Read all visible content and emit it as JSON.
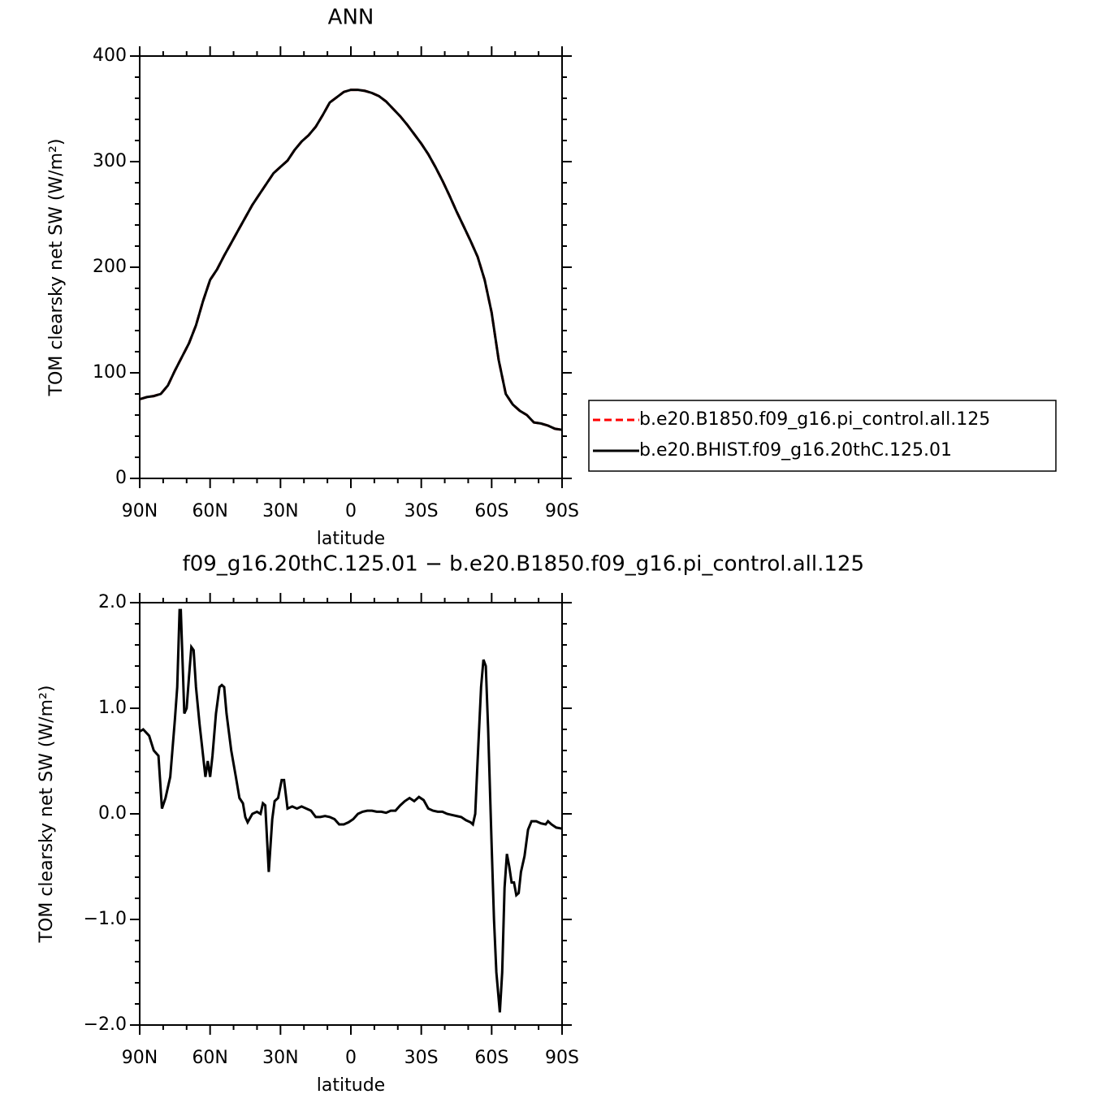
{
  "chart_data": [
    {
      "type": "line",
      "title": "ANN",
      "xlabel": "latitude",
      "ylabel": "TOM clearsky net SW (W/m²)",
      "x": [
        90,
        87,
        84,
        81,
        78,
        75,
        72,
        69,
        66,
        63,
        60,
        57,
        54,
        51,
        48,
        45,
        42,
        39,
        36,
        33,
        30,
        27,
        24,
        21,
        18,
        15,
        12,
        9,
        6,
        3,
        0,
        -3,
        -6,
        -9,
        -12,
        -15,
        -18,
        -21,
        -24,
        -27,
        -30,
        -33,
        -36,
        -39,
        -42,
        -45,
        -48,
        -51,
        -54,
        -57,
        -60,
        -63,
        -66,
        -69,
        -72,
        -75,
        -78,
        -81,
        -84,
        -87,
        -90
      ],
      "series": [
        {
          "name": "b.e20.B1850.f09_g16.pi_control.all.125",
          "color": "#ff0000",
          "style": "dashed",
          "values": [
            75,
            77,
            78,
            80,
            88,
            102,
            115,
            128,
            145,
            168,
            188,
            198,
            211,
            223,
            235,
            247,
            259,
            269,
            279,
            289,
            295,
            301,
            311,
            319,
            325,
            333,
            344,
            356,
            361,
            366,
            368,
            368,
            367,
            365,
            362,
            357,
            350,
            343,
            335,
            326,
            317,
            307,
            295,
            282,
            268,
            253,
            239,
            225,
            210,
            188,
            157,
            112,
            80,
            70,
            64,
            60,
            53,
            52,
            50,
            47,
            46
          ]
        },
        {
          "name": "b.e20.BHIST.f09_g16.20thC.125.01",
          "color": "#000000",
          "style": "solid",
          "values": [
            75,
            77,
            78,
            80,
            88,
            102,
            115,
            128,
            145,
            168,
            188,
            198,
            211,
            223,
            235,
            247,
            259,
            269,
            279,
            289,
            295,
            301,
            311,
            319,
            325,
            333,
            344,
            356,
            361,
            366,
            368,
            368,
            367,
            365,
            362,
            357,
            350,
            343,
            335,
            326,
            317,
            307,
            295,
            282,
            268,
            253,
            239,
            225,
            210,
            188,
            157,
            112,
            80,
            70,
            64,
            60,
            53,
            52,
            50,
            47,
            46
          ]
        }
      ],
      "xlim": [
        90,
        -90
      ],
      "xticks": [
        {
          "value": 90,
          "label": "90N"
        },
        {
          "value": 60,
          "label": "60N"
        },
        {
          "value": 30,
          "label": "30N"
        },
        0,
        {
          "value": -30,
          "label": "30S"
        },
        {
          "value": -60,
          "label": "60S"
        },
        {
          "value": -90,
          "label": "90S"
        }
      ],
      "xminorticks": [
        80,
        70,
        50,
        40,
        20,
        10,
        -10,
        -20,
        -40,
        -50,
        -70,
        -80
      ],
      "ylim": [
        0,
        400
      ],
      "yticks": [
        0,
        100,
        200,
        300,
        400
      ],
      "yminorticks": [
        20,
        40,
        60,
        80,
        120,
        140,
        160,
        180,
        220,
        240,
        260,
        280,
        320,
        340,
        360,
        380
      ],
      "legend": "right"
    },
    {
      "type": "line",
      "title": "f09_g16.20thC.125.01 − b.e20.B1850.f09_g16.pi_control.all.125",
      "xlabel": "latitude",
      "ylabel": "TOM clearsky net SW (W/m²)",
      "x": [
        90,
        88.5,
        86,
        84,
        82,
        80.5,
        79,
        77,
        75,
        74,
        73,
        72.5,
        71.5,
        71,
        70,
        69,
        68,
        67,
        66,
        64.5,
        63.5,
        62,
        61,
        60,
        59,
        57.5,
        56,
        55,
        54,
        53,
        51,
        49,
        47.5,
        46,
        45,
        44,
        42,
        40,
        38.5,
        37.5,
        36.5,
        35,
        33.5,
        32.5,
        31,
        29.5,
        28.5,
        27,
        25,
        23,
        21,
        19,
        17,
        15,
        13,
        11,
        9,
        7,
        5,
        3,
        1,
        -1,
        -3,
        -5,
        -7,
        -9,
        -11,
        -13,
        -15,
        -17,
        -19,
        -21,
        -23,
        -25,
        -27,
        -29,
        -31,
        -33,
        -35,
        -37,
        -39,
        -41,
        -43,
        -45,
        -47,
        -49,
        -51,
        -52,
        -53,
        -54,
        -55.5,
        -56.5,
        -57.5,
        -58.5,
        -60,
        -61,
        -62,
        -63.5,
        -64.5,
        -65.5,
        -66.5,
        -67.5,
        -68.5,
        -69.5,
        -70.5,
        -71.5,
        -72.5,
        -74,
        -75.5,
        -77,
        -79,
        -81,
        -83,
        -84,
        -85.5,
        -87.5,
        -90
      ],
      "series": [
        {
          "color": "#000000",
          "style": "solid",
          "values": [
            0.78,
            0.8,
            0.74,
            0.6,
            0.55,
            0.05,
            0.15,
            0.35,
            0.89,
            1.2,
            1.93,
            1.93,
            1.3,
            0.95,
            1.0,
            1.3,
            1.58,
            1.55,
            1.2,
            0.85,
            0.65,
            0.35,
            0.5,
            0.35,
            0.55,
            0.95,
            1.2,
            1.22,
            1.2,
            0.95,
            0.6,
            0.35,
            0.15,
            0.1,
            -0.03,
            -0.08,
            0.0,
            0.02,
            0.0,
            0.1,
            0.08,
            -0.55,
            -0.05,
            0.12,
            0.15,
            0.32,
            0.32,
            0.05,
            0.07,
            0.05,
            0.07,
            0.05,
            0.03,
            -0.03,
            -0.03,
            -0.02,
            -0.03,
            -0.05,
            -0.1,
            -0.1,
            -0.08,
            -0.05,
            0.0,
            0.02,
            0.03,
            0.03,
            0.02,
            0.02,
            0.01,
            0.03,
            0.03,
            0.08,
            0.12,
            0.15,
            0.12,
            0.16,
            0.13,
            0.05,
            0.03,
            0.02,
            0.02,
            0.0,
            -0.01,
            -0.02,
            -0.03,
            -0.06,
            -0.08,
            -0.1,
            0.0,
            0.5,
            1.2,
            1.46,
            1.4,
            0.8,
            -0.3,
            -1.0,
            -1.5,
            -1.88,
            -1.5,
            -0.7,
            -0.38,
            -0.5,
            -0.65,
            -0.65,
            -0.77,
            -0.75,
            -0.55,
            -0.4,
            -0.15,
            -0.07,
            -0.07,
            -0.09,
            -0.1,
            -0.07,
            -0.1,
            -0.13,
            -0.14
          ]
        }
      ],
      "xlim": [
        90,
        -90
      ],
      "xticks": [
        {
          "value": 90,
          "label": "90N"
        },
        {
          "value": 60,
          "label": "60N"
        },
        {
          "value": 30,
          "label": "30N"
        },
        0,
        {
          "value": -30,
          "label": "30S"
        },
        {
          "value": -60,
          "label": "60S"
        },
        {
          "value": -90,
          "label": "90S"
        }
      ],
      "xminorticks": [
        80,
        70,
        50,
        40,
        20,
        10,
        -10,
        -20,
        -40,
        -50,
        -70,
        -80
      ],
      "ylim": [
        -2,
        2
      ],
      "yticks": [
        {
          "value": -2,
          "label": "−2.0"
        },
        {
          "value": -1,
          "label": "−1.0"
        },
        {
          "value": 0,
          "label": "0.0"
        },
        {
          "value": 1,
          "label": "1.0"
        },
        {
          "value": 2,
          "label": "2.0"
        }
      ],
      "yminorticks": [
        -1.8,
        -1.6,
        -1.4,
        -1.2,
        -0.8,
        -0.6,
        -0.4,
        -0.2,
        0.2,
        0.4,
        0.6,
        0.8,
        1.2,
        1.4,
        1.6,
        1.8
      ]
    }
  ]
}
